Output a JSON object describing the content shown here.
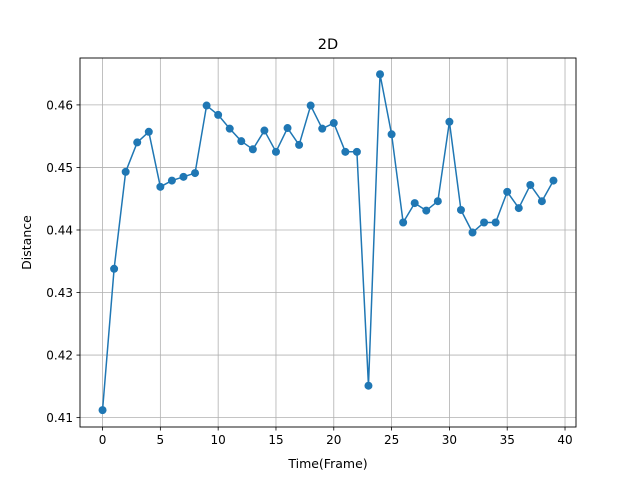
{
  "chart_data": {
    "type": "line",
    "title": "2D",
    "xlabel": "Time(Frame)",
    "ylabel": "Distance",
    "xlim": [
      -1.95,
      40.95
    ],
    "ylim": [
      0.4085,
      0.4675
    ],
    "xticks": [
      0,
      5,
      10,
      15,
      20,
      25,
      30,
      35,
      40
    ],
    "yticks": [
      0.41,
      0.42,
      0.43,
      0.44,
      0.45,
      0.46
    ],
    "grid": true,
    "marker": "circle",
    "color": "#1f77b4",
    "x": [
      0,
      1,
      2,
      3,
      4,
      5,
      6,
      7,
      8,
      9,
      10,
      11,
      12,
      13,
      14,
      15,
      16,
      17,
      18,
      19,
      20,
      21,
      22,
      23,
      24,
      25,
      26,
      27,
      28,
      29,
      30,
      31,
      32,
      33,
      34,
      35,
      36,
      37,
      38,
      39
    ],
    "y": [
      0.4112,
      0.4338,
      0.4493,
      0.454,
      0.4557,
      0.4469,
      0.4479,
      0.4485,
      0.4491,
      0.4599,
      0.4584,
      0.4562,
      0.4542,
      0.4529,
      0.4559,
      0.4525,
      0.4563,
      0.4536,
      0.4599,
      0.4562,
      0.4571,
      0.4525,
      0.4525,
      0.4151,
      0.4649,
      0.4553,
      0.4412,
      0.4443,
      0.4431,
      0.4446,
      0.4573,
      0.4432,
      0.4396,
      0.4412,
      0.4412,
      0.4461,
      0.4435,
      0.4472,
      0.4446,
      0.4479
    ]
  }
}
